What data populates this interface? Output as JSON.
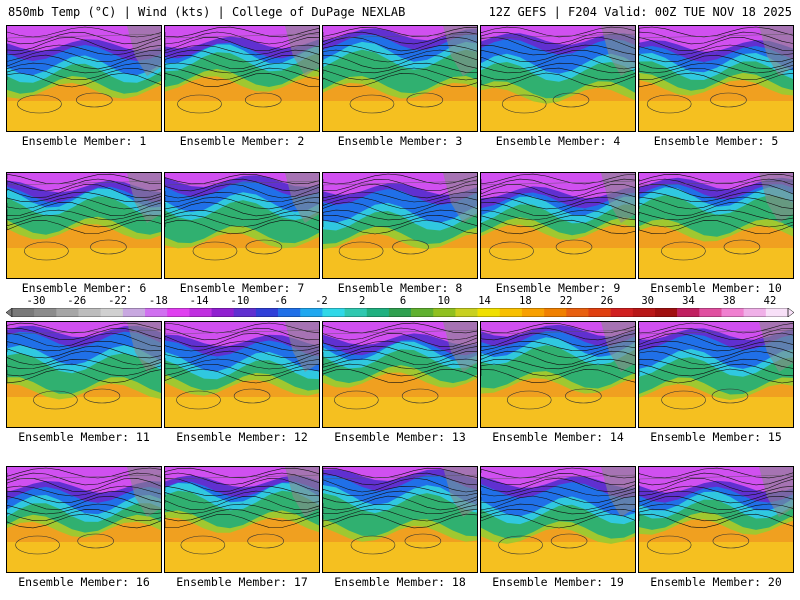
{
  "header": {
    "left_title": "850mb Temp (°C) | Wind (kts) | College of DuPage NEXLAB",
    "right_title": "12Z GEFS | F204 Valid: 00Z TUE NOV 18 2025"
  },
  "members": [
    {
      "label": "Ensemble Member: 1"
    },
    {
      "label": "Ensemble Member: 2"
    },
    {
      "label": "Ensemble Member: 3"
    },
    {
      "label": "Ensemble Member: 4"
    },
    {
      "label": "Ensemble Member: 5"
    },
    {
      "label": "Ensemble Member: 6"
    },
    {
      "label": "Ensemble Member: 7"
    },
    {
      "label": "Ensemble Member: 8"
    },
    {
      "label": "Ensemble Member: 9"
    },
    {
      "label": "Ensemble Member: 10"
    },
    {
      "label": "Ensemble Member: 11"
    },
    {
      "label": "Ensemble Member: 12"
    },
    {
      "label": "Ensemble Member: 13"
    },
    {
      "label": "Ensemble Member: 14"
    },
    {
      "label": "Ensemble Member: 15"
    },
    {
      "label": "Ensemble Member: 16"
    },
    {
      "label": "Ensemble Member: 17"
    },
    {
      "label": "Ensemble Member: 18"
    },
    {
      "label": "Ensemble Member: 19"
    },
    {
      "label": "Ensemble Member: 20"
    }
  ],
  "colorbar": {
    "tick_labels": [
      "-30",
      "-26",
      "-22",
      "-18",
      "-14",
      "-10",
      "-6",
      "-2",
      "2",
      "6",
      "10",
      "14",
      "18",
      "22",
      "26",
      "30",
      "34",
      "38",
      "42"
    ],
    "colors": [
      "#7a7a7a",
      "#8c8c8c",
      "#a6a6a6",
      "#bdbdbd",
      "#d0d0d0",
      "#c8a8e0",
      "#d070f0",
      "#e040f0",
      "#c030e0",
      "#9020d0",
      "#6030d0",
      "#3040d8",
      "#2070e8",
      "#20a8f0",
      "#30d8e8",
      "#30c8b0",
      "#20b080",
      "#30a050",
      "#60b030",
      "#90c020",
      "#c8d020",
      "#f0e000",
      "#f8c000",
      "#f8a000",
      "#f08000",
      "#e86010",
      "#e04010",
      "#d02020",
      "#b81818",
      "#a01010",
      "#c02060",
      "#e050a0",
      "#f080d0",
      "#f0b0e8",
      "#f8e0f8"
    ]
  }
}
